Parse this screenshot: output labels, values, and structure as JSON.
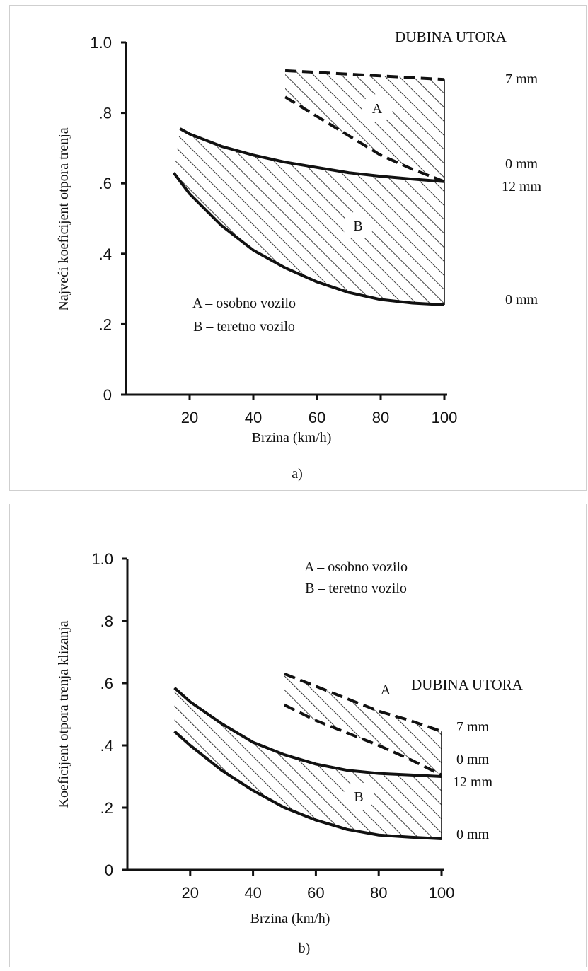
{
  "chart_data": [
    {
      "type": "area",
      "caption": "a)",
      "xlabel": "Brzina (km/h)",
      "ylabel": "Najveći koeficijent otpora trenja",
      "x_ticks": [
        "20",
        "40",
        "60",
        "80",
        "100"
      ],
      "y_ticks": [
        "0",
        ".2",
        ".4",
        ".6",
        ".8",
        "1.0"
      ],
      "xlim": [
        0,
        100
      ],
      "ylim": [
        0,
        1.0
      ],
      "legend_title": "DUBINA UTORA",
      "legend_lines": [
        "A – osobno vozilo",
        "B – teretno vozilo"
      ],
      "bands": [
        {
          "name": "A",
          "dashed": true,
          "upper": {
            "label": "7 mm",
            "x": [
              50,
              60,
              70,
              80,
              90,
              100
            ],
            "y": [
              0.92,
              0.915,
              0.91,
              0.905,
              0.9,
              0.895
            ]
          },
          "lower": {
            "label": "0 mm",
            "x": [
              50,
              60,
              70,
              80,
              90,
              100
            ],
            "y": [
              0.845,
              0.79,
              0.735,
              0.68,
              0.64,
              0.605
            ]
          }
        },
        {
          "name": "B",
          "dashed": false,
          "upper": {
            "label": "12 mm",
            "x": [
              17,
              20,
              30,
              40,
              50,
              60,
              70,
              80,
              90,
              100
            ],
            "y": [
              0.755,
              0.74,
              0.705,
              0.68,
              0.66,
              0.645,
              0.63,
              0.62,
              0.612,
              0.605
            ]
          },
          "lower": {
            "label": "0 mm",
            "x": [
              15,
              20,
              30,
              40,
              50,
              60,
              70,
              80,
              90,
              100
            ],
            "y": [
              0.63,
              0.57,
              0.48,
              0.41,
              0.36,
              0.32,
              0.29,
              0.27,
              0.26,
              0.255
            ]
          }
        }
      ]
    },
    {
      "type": "area",
      "caption": "b)",
      "xlabel": "Brzina (km/h)",
      "ylabel": "Koeficijent otpora trenja klizanja",
      "x_ticks": [
        "20",
        "40",
        "60",
        "80",
        "100"
      ],
      "y_ticks": [
        "0",
        ".2",
        ".4",
        ".6",
        ".8",
        "1.0"
      ],
      "xlim": [
        0,
        100
      ],
      "ylim": [
        0,
        1.0
      ],
      "legend_title": "DUBINA UTORA",
      "legend_lines": [
        "A – osobno vozilo",
        "B – teretno vozilo"
      ],
      "bands": [
        {
          "name": "A",
          "dashed": true,
          "upper": {
            "label": "7 mm",
            "x": [
              50,
              60,
              70,
              80,
              90,
              100
            ],
            "y": [
              0.63,
              0.59,
              0.55,
              0.51,
              0.48,
              0.445
            ]
          },
          "lower": {
            "label": "0 mm",
            "x": [
              50,
              60,
              70,
              80,
              90,
              100
            ],
            "y": [
              0.53,
              0.48,
              0.44,
              0.4,
              0.355,
              0.305
            ]
          }
        },
        {
          "name": "B",
          "dashed": false,
          "upper": {
            "label": "12 mm",
            "x": [
              15,
              20,
              30,
              40,
              50,
              60,
              70,
              80,
              90,
              100
            ],
            "y": [
              0.585,
              0.54,
              0.47,
              0.41,
              0.37,
              0.34,
              0.32,
              0.31,
              0.305,
              0.3
            ]
          },
          "lower": {
            "label": "0 mm",
            "x": [
              15,
              20,
              30,
              40,
              50,
              60,
              70,
              80,
              90,
              100
            ],
            "y": [
              0.445,
              0.4,
              0.32,
              0.255,
              0.2,
              0.16,
              0.13,
              0.112,
              0.105,
              0.1
            ]
          }
        }
      ]
    }
  ]
}
